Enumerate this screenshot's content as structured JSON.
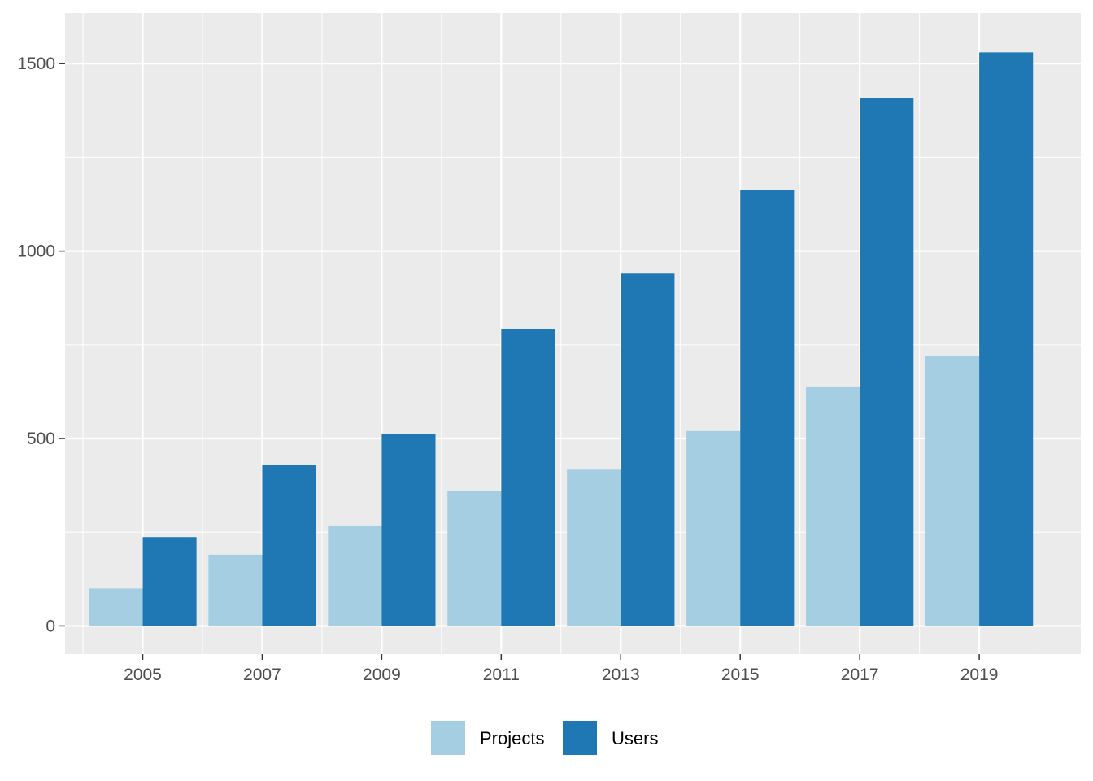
{
  "chart_data": {
    "type": "bar",
    "title": "",
    "xlabel": "",
    "ylabel": "",
    "x_ticks": [
      "2005",
      "2007",
      "2009",
      "2011",
      "2013",
      "2015",
      "2017",
      "2019"
    ],
    "x_range": [
      2003.7,
      2020.7
    ],
    "ylim": [
      -75,
      1635
    ],
    "y_ticks": [
      0,
      500,
      1000,
      1500
    ],
    "grid": true,
    "legend_position": "bottom",
    "series": [
      {
        "name": "Projects",
        "color": "#a6cee3",
        "points": [
          {
            "x": 2005,
            "y": 100
          },
          {
            "x": 2007,
            "y": 190
          },
          {
            "x": 2009,
            "y": 268
          },
          {
            "x": 2011,
            "y": 360
          },
          {
            "x": 2013,
            "y": 417
          },
          {
            "x": 2015,
            "y": 520
          },
          {
            "x": 2017,
            "y": 637
          },
          {
            "x": 2019,
            "y": 720
          }
        ]
      },
      {
        "name": "Users",
        "color": "#1f78b4",
        "points": [
          {
            "x": 2005,
            "y": 237
          },
          {
            "x": 2007,
            "y": 430
          },
          {
            "x": 2009,
            "y": 511
          },
          {
            "x": 2011,
            "y": 791
          },
          {
            "x": 2013,
            "y": 940
          },
          {
            "x": 2015,
            "y": 1162
          },
          {
            "x": 2017,
            "y": 1408
          },
          {
            "x": 2019,
            "y": 1530
          }
        ]
      }
    ]
  }
}
